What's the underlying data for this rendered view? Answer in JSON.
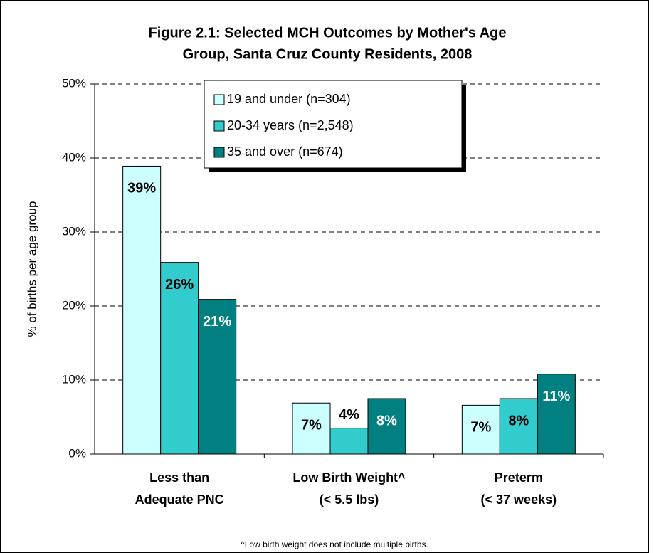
{
  "chart_data": {
    "type": "bar",
    "title": [
      "Figure 2.1: Selected MCH Outcomes by Mother's Age",
      "Group, Santa Cruz County Residents, 2008"
    ],
    "ylabel": "% of births per age group",
    "footnote": "^Low birth weight does not include multiple births.",
    "categories": [
      [
        "Less than",
        "Adequate PNC"
      ],
      [
        "Low Birth Weight^",
        "(< 5.5 lbs)"
      ],
      [
        "Preterm",
        "(< 37 weeks)"
      ]
    ],
    "series": [
      {
        "name": "19 and under (n=304)",
        "color": "#ccffff",
        "label_color": "#000000",
        "values": [
          38.9,
          6.9,
          6.6
        ],
        "value_labels": [
          "39%",
          "7%",
          "7%"
        ]
      },
      {
        "name": "20-34 years (n=2,548)",
        "color": "#33cccc",
        "label_color": "#000000",
        "values": [
          25.9,
          3.5,
          7.5
        ],
        "value_labels": [
          "26%",
          "4%",
          "8%"
        ]
      },
      {
        "name": "35 and over  (n=674)",
        "color": "#008080",
        "label_color": "#ffffff",
        "values": [
          20.9,
          7.5,
          10.8
        ],
        "value_labels": [
          "21%",
          "8%",
          "11%"
        ]
      }
    ],
    "ylim": [
      0,
      50
    ],
    "yticks": [
      {
        "value": 0,
        "label": "0%"
      },
      {
        "value": 10,
        "label": "10%"
      },
      {
        "value": 20,
        "label": "20%"
      },
      {
        "value": 30,
        "label": "30%"
      },
      {
        "value": 40,
        "label": "40%"
      },
      {
        "value": 50,
        "label": "50%"
      }
    ],
    "grid": true,
    "legend": "top"
  }
}
